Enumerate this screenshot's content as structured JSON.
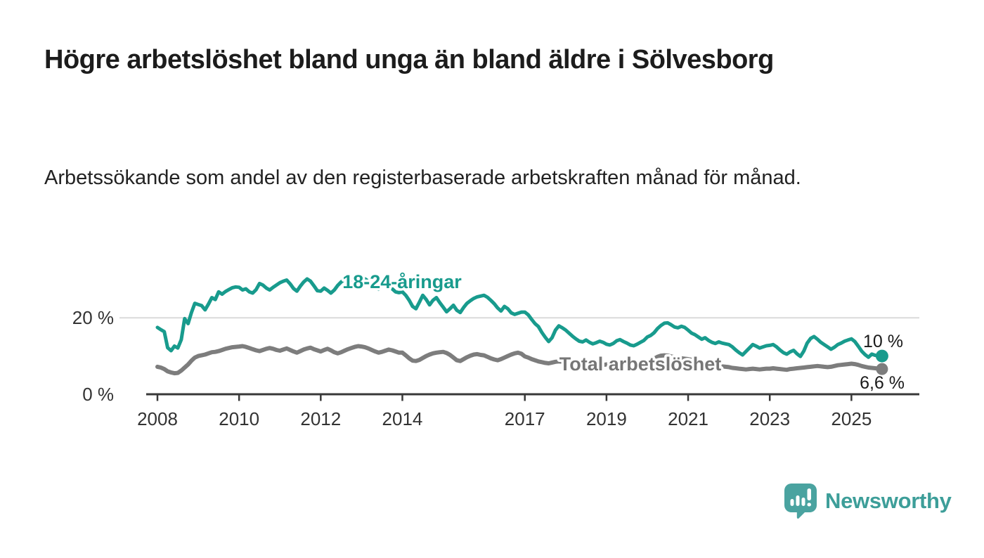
{
  "header": {
    "title": "Högre arbetslöshet bland unga än bland äldre i Sölvesborg",
    "subtitle": "Arbetssökande som andel av den registerbaserade arbetskraften månad för månad."
  },
  "chart_data": {
    "type": "line",
    "unit": "%",
    "frequency": "monthly",
    "x_start": "2008-01",
    "x_end": "2025-10",
    "x_tick_labels": [
      "2008",
      "2010",
      "2012",
      "2014",
      "2017",
      "2019",
      "2021",
      "2023",
      "2025"
    ],
    "y_tick_labels": [
      "0 %",
      "20 %"
    ],
    "ylim": [
      0,
      32
    ],
    "grid": "horizontal gridline at 20% only",
    "legend_position": "inline labels on lines",
    "series": [
      {
        "name": "Total arbetslöshet",
        "color": "#7d7d7d",
        "end_label": "6,6 %",
        "end_value": 6.6,
        "values": [
          7.2,
          7.0,
          6.6,
          6.0,
          5.7,
          5.5,
          5.6,
          6.2,
          7.0,
          7.8,
          8.8,
          9.6,
          10.0,
          10.2,
          10.4,
          10.7,
          11.0,
          11.1,
          11.3,
          11.6,
          11.9,
          12.1,
          12.3,
          12.4,
          12.5,
          12.6,
          12.4,
          12.1,
          11.8,
          11.5,
          11.3,
          11.6,
          11.9,
          12.1,
          11.9,
          11.6,
          11.4,
          11.7,
          12.0,
          11.6,
          11.2,
          10.9,
          11.3,
          11.7,
          12.0,
          12.2,
          11.8,
          11.5,
          11.2,
          11.6,
          11.9,
          11.5,
          11.0,
          10.7,
          11.0,
          11.4,
          11.8,
          12.1,
          12.4,
          12.6,
          12.5,
          12.3,
          12.0,
          11.6,
          11.2,
          10.9,
          11.1,
          11.4,
          11.7,
          11.5,
          11.2,
          10.9,
          10.9,
          10.2,
          9.4,
          8.8,
          8.7,
          9.0,
          9.5,
          10.0,
          10.4,
          10.7,
          10.9,
          11.0,
          11.1,
          10.8,
          10.3,
          9.6,
          8.9,
          8.7,
          9.2,
          9.7,
          10.1,
          10.4,
          10.5,
          10.3,
          10.2,
          9.8,
          9.4,
          9.1,
          8.9,
          9.2,
          9.6,
          10.0,
          10.4,
          10.7,
          10.9,
          10.6,
          9.9,
          9.6,
          9.2,
          8.9,
          8.6,
          8.4,
          8.2,
          8.1,
          8.3,
          8.5,
          8.6,
          8.5,
          8.4,
          8.2,
          8.0,
          7.8,
          7.6,
          7.5,
          7.7,
          7.9,
          8.0,
          7.9,
          7.8,
          7.7,
          7.8,
          7.9,
          7.8,
          7.7,
          7.6,
          7.7,
          7.9,
          8.1,
          8.2,
          8.3,
          8.4,
          8.5,
          8.7,
          8.9,
          9.3,
          9.8,
          10.1,
          10.2,
          10.1,
          9.9,
          9.7,
          9.5,
          9.4,
          9.3,
          9.2,
          9.0,
          8.8,
          8.6,
          8.4,
          8.2,
          8.0,
          7.8,
          7.6,
          7.4,
          7.3,
          7.2,
          7.1,
          6.9,
          6.8,
          6.7,
          6.6,
          6.5,
          6.6,
          6.7,
          6.6,
          6.5,
          6.6,
          6.7,
          6.7,
          6.8,
          6.7,
          6.6,
          6.5,
          6.4,
          6.6,
          6.7,
          6.8,
          6.9,
          7.0,
          7.1,
          7.2,
          7.3,
          7.4,
          7.3,
          7.2,
          7.1,
          7.2,
          7.4,
          7.6,
          7.7,
          7.8,
          7.9,
          8.0,
          7.9,
          7.7,
          7.4,
          7.2,
          7.0,
          6.9,
          6.8,
          6.7,
          6.6
        ]
      },
      {
        "name": "18-24-åringar",
        "color": "#189b8d",
        "end_label": "10 %",
        "end_value": 10,
        "values": [
          17.5,
          16.9,
          16.4,
          12.2,
          11.4,
          12.6,
          12.1,
          14.3,
          19.8,
          18.5,
          21.4,
          23.8,
          23.5,
          23.2,
          22.1,
          23.6,
          25.3,
          24.8,
          26.8,
          26.2,
          26.9,
          27.4,
          27.9,
          28.1,
          28.0,
          27.3,
          27.6,
          26.8,
          26.5,
          27.4,
          29.0,
          28.6,
          27.8,
          27.3,
          28.0,
          28.6,
          29.2,
          29.6,
          29.9,
          28.9,
          27.7,
          27.0,
          28.3,
          29.4,
          30.2,
          29.6,
          28.4,
          27.1,
          27.0,
          27.8,
          27.2,
          26.5,
          27.3,
          28.5,
          29.4,
          30.1,
          29.8,
          29.5,
          29.9,
          29.6,
          29.8,
          30.2,
          29.6,
          28.8,
          28.2,
          27.5,
          28.4,
          29.0,
          28.3,
          27.6,
          26.8,
          26.6,
          26.8,
          25.9,
          24.6,
          23.0,
          22.4,
          24.1,
          25.9,
          24.8,
          23.4,
          24.6,
          25.3,
          24.0,
          22.8,
          21.6,
          22.4,
          23.3,
          22.0,
          21.4,
          22.7,
          23.8,
          24.5,
          25.1,
          25.5,
          25.7,
          25.9,
          25.4,
          24.6,
          23.7,
          22.6,
          21.8,
          23.0,
          22.4,
          21.3,
          20.9,
          21.2,
          21.5,
          21.5,
          20.8,
          19.6,
          18.5,
          17.7,
          16.2,
          14.9,
          13.8,
          14.8,
          16.8,
          17.9,
          17.4,
          16.8,
          16.0,
          15.2,
          14.5,
          13.9,
          13.7,
          14.2,
          13.6,
          13.2,
          13.5,
          13.9,
          13.6,
          13.1,
          12.9,
          13.3,
          14.0,
          14.3,
          13.8,
          13.4,
          12.9,
          12.7,
          13.1,
          13.6,
          14.1,
          15.0,
          15.4,
          16.1,
          17.2,
          18.0,
          18.6,
          18.7,
          18.2,
          17.6,
          17.4,
          17.8,
          17.5,
          16.8,
          16.0,
          15.6,
          15.0,
          14.4,
          14.8,
          14.1,
          13.6,
          13.3,
          13.7,
          13.4,
          13.2,
          13.0,
          12.4,
          11.6,
          10.9,
          10.3,
          11.2,
          12.1,
          13.0,
          12.6,
          12.1,
          12.4,
          12.7,
          12.8,
          13.0,
          12.4,
          11.6,
          10.9,
          10.5,
          11.1,
          11.5,
          10.6,
          9.9,
          11.3,
          13.4,
          14.6,
          15.1,
          14.4,
          13.6,
          13.0,
          12.4,
          11.8,
          12.3,
          13.0,
          13.4,
          13.9,
          14.2,
          14.5,
          13.8,
          12.6,
          11.3,
          10.4,
          9.7,
          10.5,
          10.2,
          10.0,
          10.0
        ]
      }
    ]
  },
  "footer": {
    "brand": "Newsworthy"
  },
  "colors": {
    "youth_line": "#189b8d",
    "total_line": "#7d7d7d",
    "total_label": "#767676",
    "axis": "#383838",
    "gridline": "#dadada",
    "annotation": "#1a1a1a",
    "logo_icon": "#4aa3a0",
    "logo_text": "#3d9e99"
  }
}
